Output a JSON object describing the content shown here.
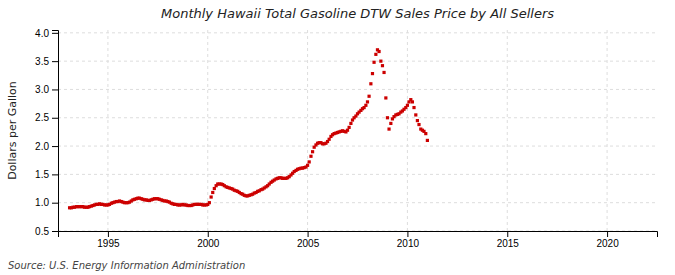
{
  "chart_data": {
    "type": "scatter",
    "title": "Monthly Hawaii Total Gasoline DTW Sales Price by All Sellers",
    "y_label": "Dollars per Gallon",
    "source": "Source: U.S. Energy Information Administration",
    "color": "#cc0000",
    "marker": "square",
    "grid": true,
    "xlim": [
      1992.5,
      2022.5
    ],
    "ylim": [
      0.5,
      4.05
    ],
    "xticks": [
      1995,
      2000,
      2005,
      2010,
      2015,
      2020
    ],
    "yticks": [
      0.5,
      {
        "value": 1.0,
        "label": "1.0"
      },
      1.5,
      {
        "value": 2.0,
        "label": "2.0"
      },
      2.5,
      {
        "value": 3.0,
        "label": "3.0"
      },
      3.5,
      {
        "value": 4.0,
        "label": "4.0"
      }
    ],
    "x": [
      1993.08,
      1993.17,
      1993.25,
      1993.33,
      1993.42,
      1993.5,
      1993.58,
      1993.67,
      1993.75,
      1993.83,
      1993.92,
      1994.0,
      1994.08,
      1994.17,
      1994.25,
      1994.33,
      1994.42,
      1994.5,
      1994.58,
      1994.67,
      1994.75,
      1994.83,
      1994.92,
      1995.0,
      1995.08,
      1995.17,
      1995.25,
      1995.33,
      1995.42,
      1995.5,
      1995.58,
      1995.67,
      1995.75,
      1995.83,
      1995.92,
      1996.0,
      1996.08,
      1996.17,
      1996.25,
      1996.33,
      1996.42,
      1996.5,
      1996.58,
      1996.67,
      1996.75,
      1996.83,
      1996.92,
      1997.0,
      1997.08,
      1997.17,
      1997.25,
      1997.33,
      1997.42,
      1997.5,
      1997.58,
      1997.67,
      1997.75,
      1997.83,
      1997.92,
      1998.0,
      1998.08,
      1998.17,
      1998.25,
      1998.33,
      1998.42,
      1998.5,
      1998.58,
      1998.67,
      1998.75,
      1998.83,
      1998.92,
      1999.0,
      1999.08,
      1999.17,
      1999.25,
      1999.33,
      1999.42,
      1999.5,
      1999.58,
      1999.67,
      1999.75,
      1999.83,
      1999.92,
      2000.0,
      2000.08,
      2000.17,
      2000.25,
      2000.33,
      2000.42,
      2000.5,
      2000.58,
      2000.67,
      2000.75,
      2000.83,
      2000.92,
      2001.0,
      2001.08,
      2001.17,
      2001.25,
      2001.33,
      2001.42,
      2001.5,
      2001.58,
      2001.67,
      2001.75,
      2001.83,
      2001.92,
      2002.0,
      2002.08,
      2002.17,
      2002.25,
      2002.33,
      2002.42,
      2002.5,
      2002.58,
      2002.67,
      2002.75,
      2002.83,
      2002.92,
      2003.0,
      2003.08,
      2003.17,
      2003.25,
      2003.33,
      2003.42,
      2003.5,
      2003.58,
      2003.67,
      2003.75,
      2003.83,
      2003.92,
      2004.0,
      2004.08,
      2004.17,
      2004.25,
      2004.33,
      2004.42,
      2004.5,
      2004.58,
      2004.67,
      2004.75,
      2004.83,
      2004.92,
      2005.0,
      2005.08,
      2005.17,
      2005.25,
      2005.33,
      2005.42,
      2005.5,
      2005.58,
      2005.67,
      2005.75,
      2005.83,
      2005.92,
      2006.0,
      2006.08,
      2006.17,
      2006.25,
      2006.33,
      2006.42,
      2006.5,
      2006.58,
      2006.67,
      2006.75,
      2006.83,
      2006.92,
      2007.0,
      2007.08,
      2007.17,
      2007.25,
      2007.33,
      2007.42,
      2007.5,
      2007.58,
      2007.67,
      2007.75,
      2007.83,
      2007.92,
      2008.0,
      2008.08,
      2008.17,
      2008.25,
      2008.33,
      2008.42,
      2008.5,
      2008.58,
      2008.67,
      2008.75,
      2008.83,
      2008.92,
      2009.0,
      2009.08,
      2009.17,
      2009.25,
      2009.33,
      2009.42,
      2009.5,
      2009.58,
      2009.67,
      2009.75,
      2009.83,
      2009.92,
      2010.0,
      2010.08,
      2010.17,
      2010.25,
      2010.33,
      2010.42,
      2010.5,
      2010.58,
      2010.67,
      2010.75,
      2010.83,
      2010.92,
      2011.0
    ],
    "values": [
      0.91,
      0.91,
      0.92,
      0.92,
      0.93,
      0.93,
      0.93,
      0.93,
      0.93,
      0.92,
      0.92,
      0.92,
      0.93,
      0.94,
      0.95,
      0.96,
      0.97,
      0.97,
      0.98,
      0.97,
      0.97,
      0.96,
      0.96,
      0.96,
      0.97,
      0.99,
      1.0,
      1.01,
      1.02,
      1.02,
      1.03,
      1.02,
      1.01,
      1.0,
      1.0,
      1.0,
      1.01,
      1.03,
      1.05,
      1.06,
      1.07,
      1.08,
      1.08,
      1.07,
      1.06,
      1.05,
      1.05,
      1.04,
      1.04,
      1.05,
      1.06,
      1.07,
      1.07,
      1.07,
      1.06,
      1.05,
      1.04,
      1.03,
      1.03,
      1.02,
      1.01,
      0.99,
      0.98,
      0.97,
      0.97,
      0.96,
      0.96,
      0.96,
      0.97,
      0.96,
      0.96,
      0.95,
      0.95,
      0.95,
      0.96,
      0.97,
      0.97,
      0.97,
      0.97,
      0.97,
      0.96,
      0.96,
      0.96,
      0.97,
      1.0,
      1.1,
      1.18,
      1.25,
      1.3,
      1.33,
      1.33,
      1.33,
      1.32,
      1.3,
      1.28,
      1.27,
      1.26,
      1.25,
      1.24,
      1.22,
      1.21,
      1.2,
      1.18,
      1.16,
      1.15,
      1.13,
      1.12,
      1.12,
      1.13,
      1.14,
      1.15,
      1.17,
      1.18,
      1.2,
      1.21,
      1.23,
      1.24,
      1.26,
      1.28,
      1.3,
      1.33,
      1.36,
      1.38,
      1.4,
      1.42,
      1.43,
      1.44,
      1.44,
      1.43,
      1.43,
      1.43,
      1.44,
      1.46,
      1.49,
      1.52,
      1.55,
      1.57,
      1.59,
      1.6,
      1.61,
      1.61,
      1.62,
      1.63,
      1.66,
      1.72,
      1.82,
      1.9,
      1.98,
      2.02,
      2.05,
      2.06,
      2.06,
      2.04,
      2.04,
      2.05,
      2.08,
      2.12,
      2.17,
      2.2,
      2.22,
      2.23,
      2.24,
      2.25,
      2.26,
      2.27,
      2.26,
      2.25,
      2.28,
      2.33,
      2.4,
      2.46,
      2.5,
      2.53,
      2.57,
      2.6,
      2.63,
      2.66,
      2.68,
      2.72,
      2.78,
      2.88,
      3.1,
      3.28,
      3.48,
      3.62,
      3.7,
      3.67,
      3.5,
      3.42,
      3.3,
      2.85,
      2.5,
      2.3,
      2.4,
      2.48,
      2.52,
      2.55,
      2.56,
      2.57,
      2.6,
      2.62,
      2.65,
      2.68,
      2.72,
      2.78,
      2.82,
      2.78,
      2.68,
      2.55,
      2.45,
      2.38,
      2.3,
      2.28,
      2.26,
      2.22,
      2.1
    ]
  }
}
